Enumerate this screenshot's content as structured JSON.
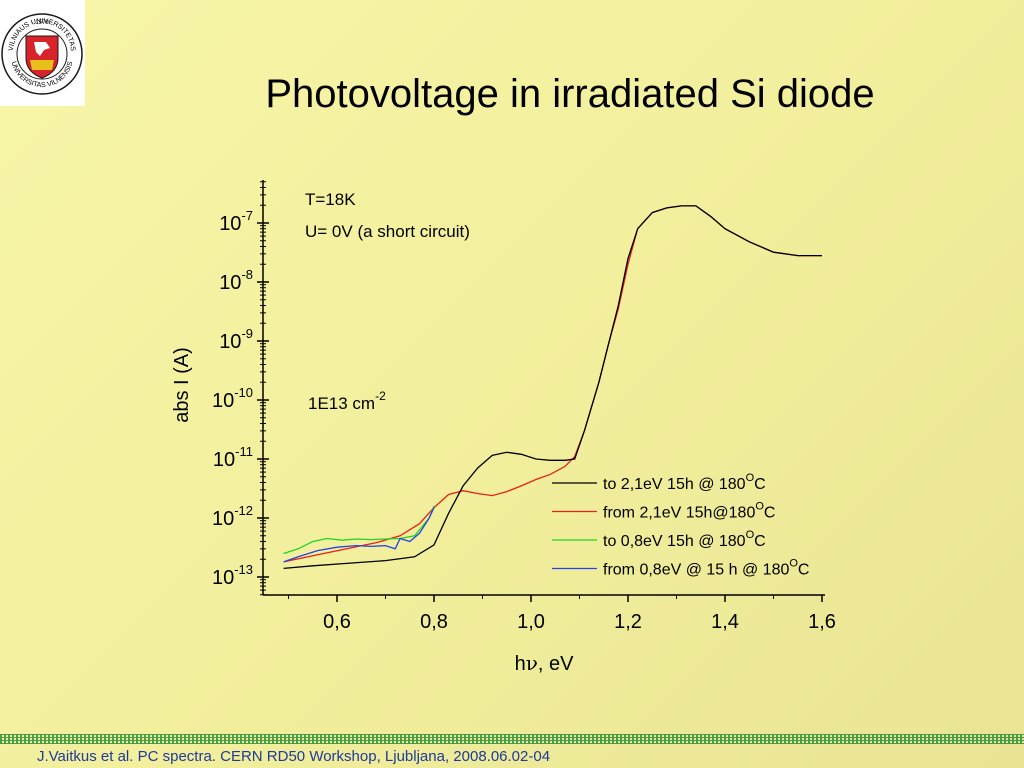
{
  "slide": {
    "title": "Photovoltage in irradiated Si diode",
    "footer": "J.Vaitkus et al. PC spectra. CERN RD50 Workshop, Ljubljana, 2008.06.02-04",
    "logo": {
      "ring_text_top": "VILNIAUS UNIVERSITETAS",
      "ring_text_bottom": "UNIVERSITAS VILNENSIS",
      "year": "· 1579 ·",
      "colors": {
        "shield": "#d8232a",
        "gold": "#e8c01e",
        "ring": "#1a1a1a"
      }
    }
  },
  "chart_data": {
    "type": "line",
    "xlabel_base": "h",
    "xlabel_nu": "ν",
    "xlabel_rest": ", eV",
    "ylabel": "abs I (A)",
    "xlim": [
      0.45,
      1.6
    ],
    "ylim": [
      1e-13,
      3e-07
    ],
    "yscale": "log",
    "x_ticks": [
      0.6,
      0.8,
      1.0,
      1.2,
      1.4,
      1.6
    ],
    "x_tick_labels": [
      "0,6",
      "0,8",
      "1,0",
      "1,2",
      "1,4",
      "1,6"
    ],
    "y_ticks": [
      {
        "base": "10",
        "exp": "-7"
      },
      {
        "base": "10",
        "exp": "-8"
      },
      {
        "base": "10",
        "exp": "-9"
      },
      {
        "base": "10",
        "exp": "-10"
      },
      {
        "base": "10",
        "exp": "-11"
      },
      {
        "base": "10",
        "exp": "-12"
      },
      {
        "base": "10",
        "exp": "-13"
      }
    ],
    "annotations": {
      "temperature": "T=18K",
      "voltage": "U= 0V (a short circuit)",
      "fluence_base": "1E13 cm",
      "fluence_exp": "-2"
    },
    "legend_placement": "lower-right",
    "grid": false,
    "series": [
      {
        "name_pre": "to 2,1eV  15h @ 180",
        "name_sup": "O",
        "name_post": "C",
        "color": "#000000",
        "points": [
          [
            0.49,
            1.4e-13
          ],
          [
            0.55,
            1.55e-13
          ],
          [
            0.62,
            1.7e-13
          ],
          [
            0.7,
            1.9e-13
          ],
          [
            0.76,
            2.2e-13
          ],
          [
            0.8,
            3.5e-13
          ],
          [
            0.83,
            1.2e-12
          ],
          [
            0.86,
            3.5e-12
          ],
          [
            0.89,
            7e-12
          ],
          [
            0.92,
            1.15e-11
          ],
          [
            0.95,
            1.3e-11
          ],
          [
            0.98,
            1.2e-11
          ],
          [
            1.01,
            1e-11
          ],
          [
            1.04,
            9.5e-12
          ],
          [
            1.07,
            9.5e-12
          ],
          [
            1.09,
            1e-11
          ],
          [
            1.11,
            3e-11
          ],
          [
            1.14,
            2e-10
          ],
          [
            1.16,
            9e-10
          ],
          [
            1.18,
            4e-09
          ],
          [
            1.2,
            2.5e-08
          ],
          [
            1.22,
            8e-08
          ],
          [
            1.25,
            1.5e-07
          ],
          [
            1.28,
            1.8e-07
          ],
          [
            1.31,
            1.95e-07
          ],
          [
            1.34,
            1.95e-07
          ],
          [
            1.37,
            1.3e-07
          ],
          [
            1.4,
            8e-08
          ],
          [
            1.45,
            4.8e-08
          ],
          [
            1.5,
            3.2e-08
          ],
          [
            1.55,
            2.8e-08
          ],
          [
            1.6,
            2.8e-08
          ]
        ]
      },
      {
        "name_pre": "from 2,1eV  15h@180",
        "name_sup": "O",
        "name_post": "C",
        "color": "#e8201a",
        "points": [
          [
            0.49,
            1.8e-13
          ],
          [
            0.55,
            2.3e-13
          ],
          [
            0.62,
            3e-13
          ],
          [
            0.68,
            3.8e-13
          ],
          [
            0.73,
            5e-13
          ],
          [
            0.77,
            8e-13
          ],
          [
            0.8,
            1.5e-12
          ],
          [
            0.83,
            2.5e-12
          ],
          [
            0.86,
            2.9e-12
          ],
          [
            0.89,
            2.6e-12
          ],
          [
            0.92,
            2.4e-12
          ],
          [
            0.95,
            2.8e-12
          ],
          [
            0.98,
            3.5e-12
          ],
          [
            1.01,
            4.5e-12
          ],
          [
            1.04,
            5.5e-12
          ],
          [
            1.07,
            7.5e-12
          ],
          [
            1.09,
            1.1e-11
          ],
          [
            1.11,
            3e-11
          ],
          [
            1.14,
            2e-10
          ],
          [
            1.16,
            9e-10
          ],
          [
            1.18,
            3.5e-09
          ],
          [
            1.2,
            2e-08
          ],
          [
            1.22,
            8e-08
          ],
          [
            1.25,
            1.5e-07
          ],
          [
            1.28,
            1.8e-07
          ],
          [
            1.31,
            1.95e-07
          ],
          [
            1.34,
            1.95e-07
          ],
          [
            1.37,
            1.3e-07
          ],
          [
            1.4,
            8e-08
          ],
          [
            1.45,
            4.8e-08
          ],
          [
            1.5,
            3.2e-08
          ],
          [
            1.55,
            2.8e-08
          ],
          [
            1.6,
            2.8e-08
          ]
        ]
      },
      {
        "name_pre": "to 0,8eV  15h @ 180",
        "name_sup": "O",
        "name_post": "C",
        "color": "#22d422",
        "points": [
          [
            0.49,
            2.5e-13
          ],
          [
            0.52,
            3e-13
          ],
          [
            0.55,
            4e-13
          ],
          [
            0.58,
            4.5e-13
          ],
          [
            0.61,
            4.2e-13
          ],
          [
            0.64,
            4.4e-13
          ],
          [
            0.67,
            4.3e-13
          ],
          [
            0.7,
            4.4e-13
          ],
          [
            0.73,
            4.5e-13
          ],
          [
            0.76,
            5e-13
          ],
          [
            0.79,
            1e-12
          ],
          [
            0.8,
            1.6e-12
          ]
        ]
      },
      {
        "name_pre": "from 0,8eV @ 15 h @ 180",
        "name_sup": "O",
        "name_post": "C",
        "color": "#2244e8",
        "points": [
          [
            0.49,
            1.8e-13
          ],
          [
            0.52,
            2.2e-13
          ],
          [
            0.56,
            2.8e-13
          ],
          [
            0.6,
            3.2e-13
          ],
          [
            0.64,
            3.4e-13
          ],
          [
            0.67,
            3.3e-13
          ],
          [
            0.7,
            3.4e-13
          ],
          [
            0.72,
            3e-13
          ],
          [
            0.73,
            4.5e-13
          ],
          [
            0.75,
            4e-13
          ],
          [
            0.77,
            5.5e-13
          ],
          [
            0.79,
            1e-12
          ],
          [
            0.8,
            1.5e-12
          ]
        ]
      }
    ]
  }
}
